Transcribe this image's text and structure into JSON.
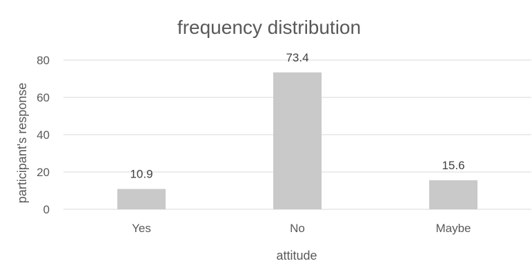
{
  "chart_data": {
    "type": "bar",
    "title": "frequency distribution",
    "xlabel": "attitude",
    "ylabel": "participant's response",
    "categories": [
      "Yes",
      "No",
      "Maybe"
    ],
    "values": [
      10.9,
      73.4,
      15.6
    ],
    "data_labels": [
      "10.9",
      "73.4",
      "15.6"
    ],
    "yticks": [
      0,
      20,
      40,
      60,
      80
    ],
    "ytick_labels": [
      "0",
      "20",
      "40",
      "60",
      "80"
    ],
    "ylim": [
      0,
      80
    ],
    "grid": true,
    "legend": "none",
    "bar_color": "#c9c9c9"
  }
}
